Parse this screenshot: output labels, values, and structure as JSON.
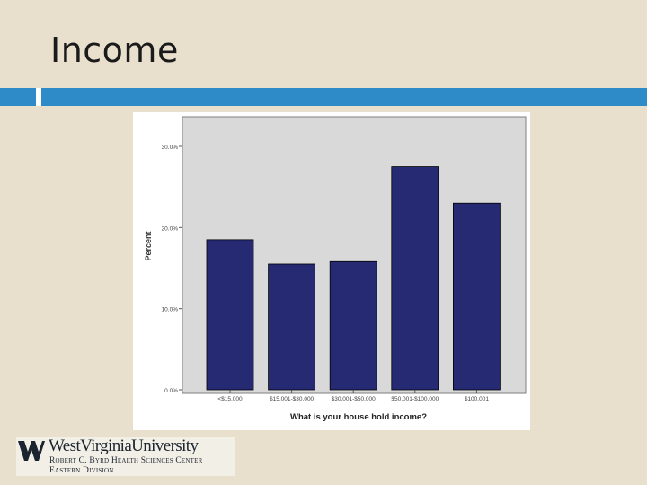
{
  "slide": {
    "title": "Income"
  },
  "logo": {
    "line1": "WestVirginiaUniversity",
    "line2": "Robert C. Byrd Health Sciences Center",
    "line3": "Eastern Division",
    "brand_color": "#1c2430"
  },
  "colors": {
    "background": "#e8e0cd",
    "accent_bar": "#2e8bc8",
    "plot_background": "#d9d9d9",
    "bar_fill": "#262a72"
  },
  "chart_data": {
    "type": "bar",
    "categories": [
      "<$15,000",
      "$15,001-$30,000",
      "$30,001-$50,000",
      "$50,001-$100,000",
      "$100,001"
    ],
    "values": [
      18.5,
      15.5,
      15.8,
      27.5,
      23.0
    ],
    "ytick_labels": [
      "0.0%",
      "10.0%",
      "20.0%",
      "30.0%"
    ],
    "yticks": [
      0,
      10,
      20,
      30
    ],
    "xlabel": "What is your house hold income?",
    "ylabel": "Percent",
    "ylim": [
      0,
      30
    ],
    "grid": false
  }
}
